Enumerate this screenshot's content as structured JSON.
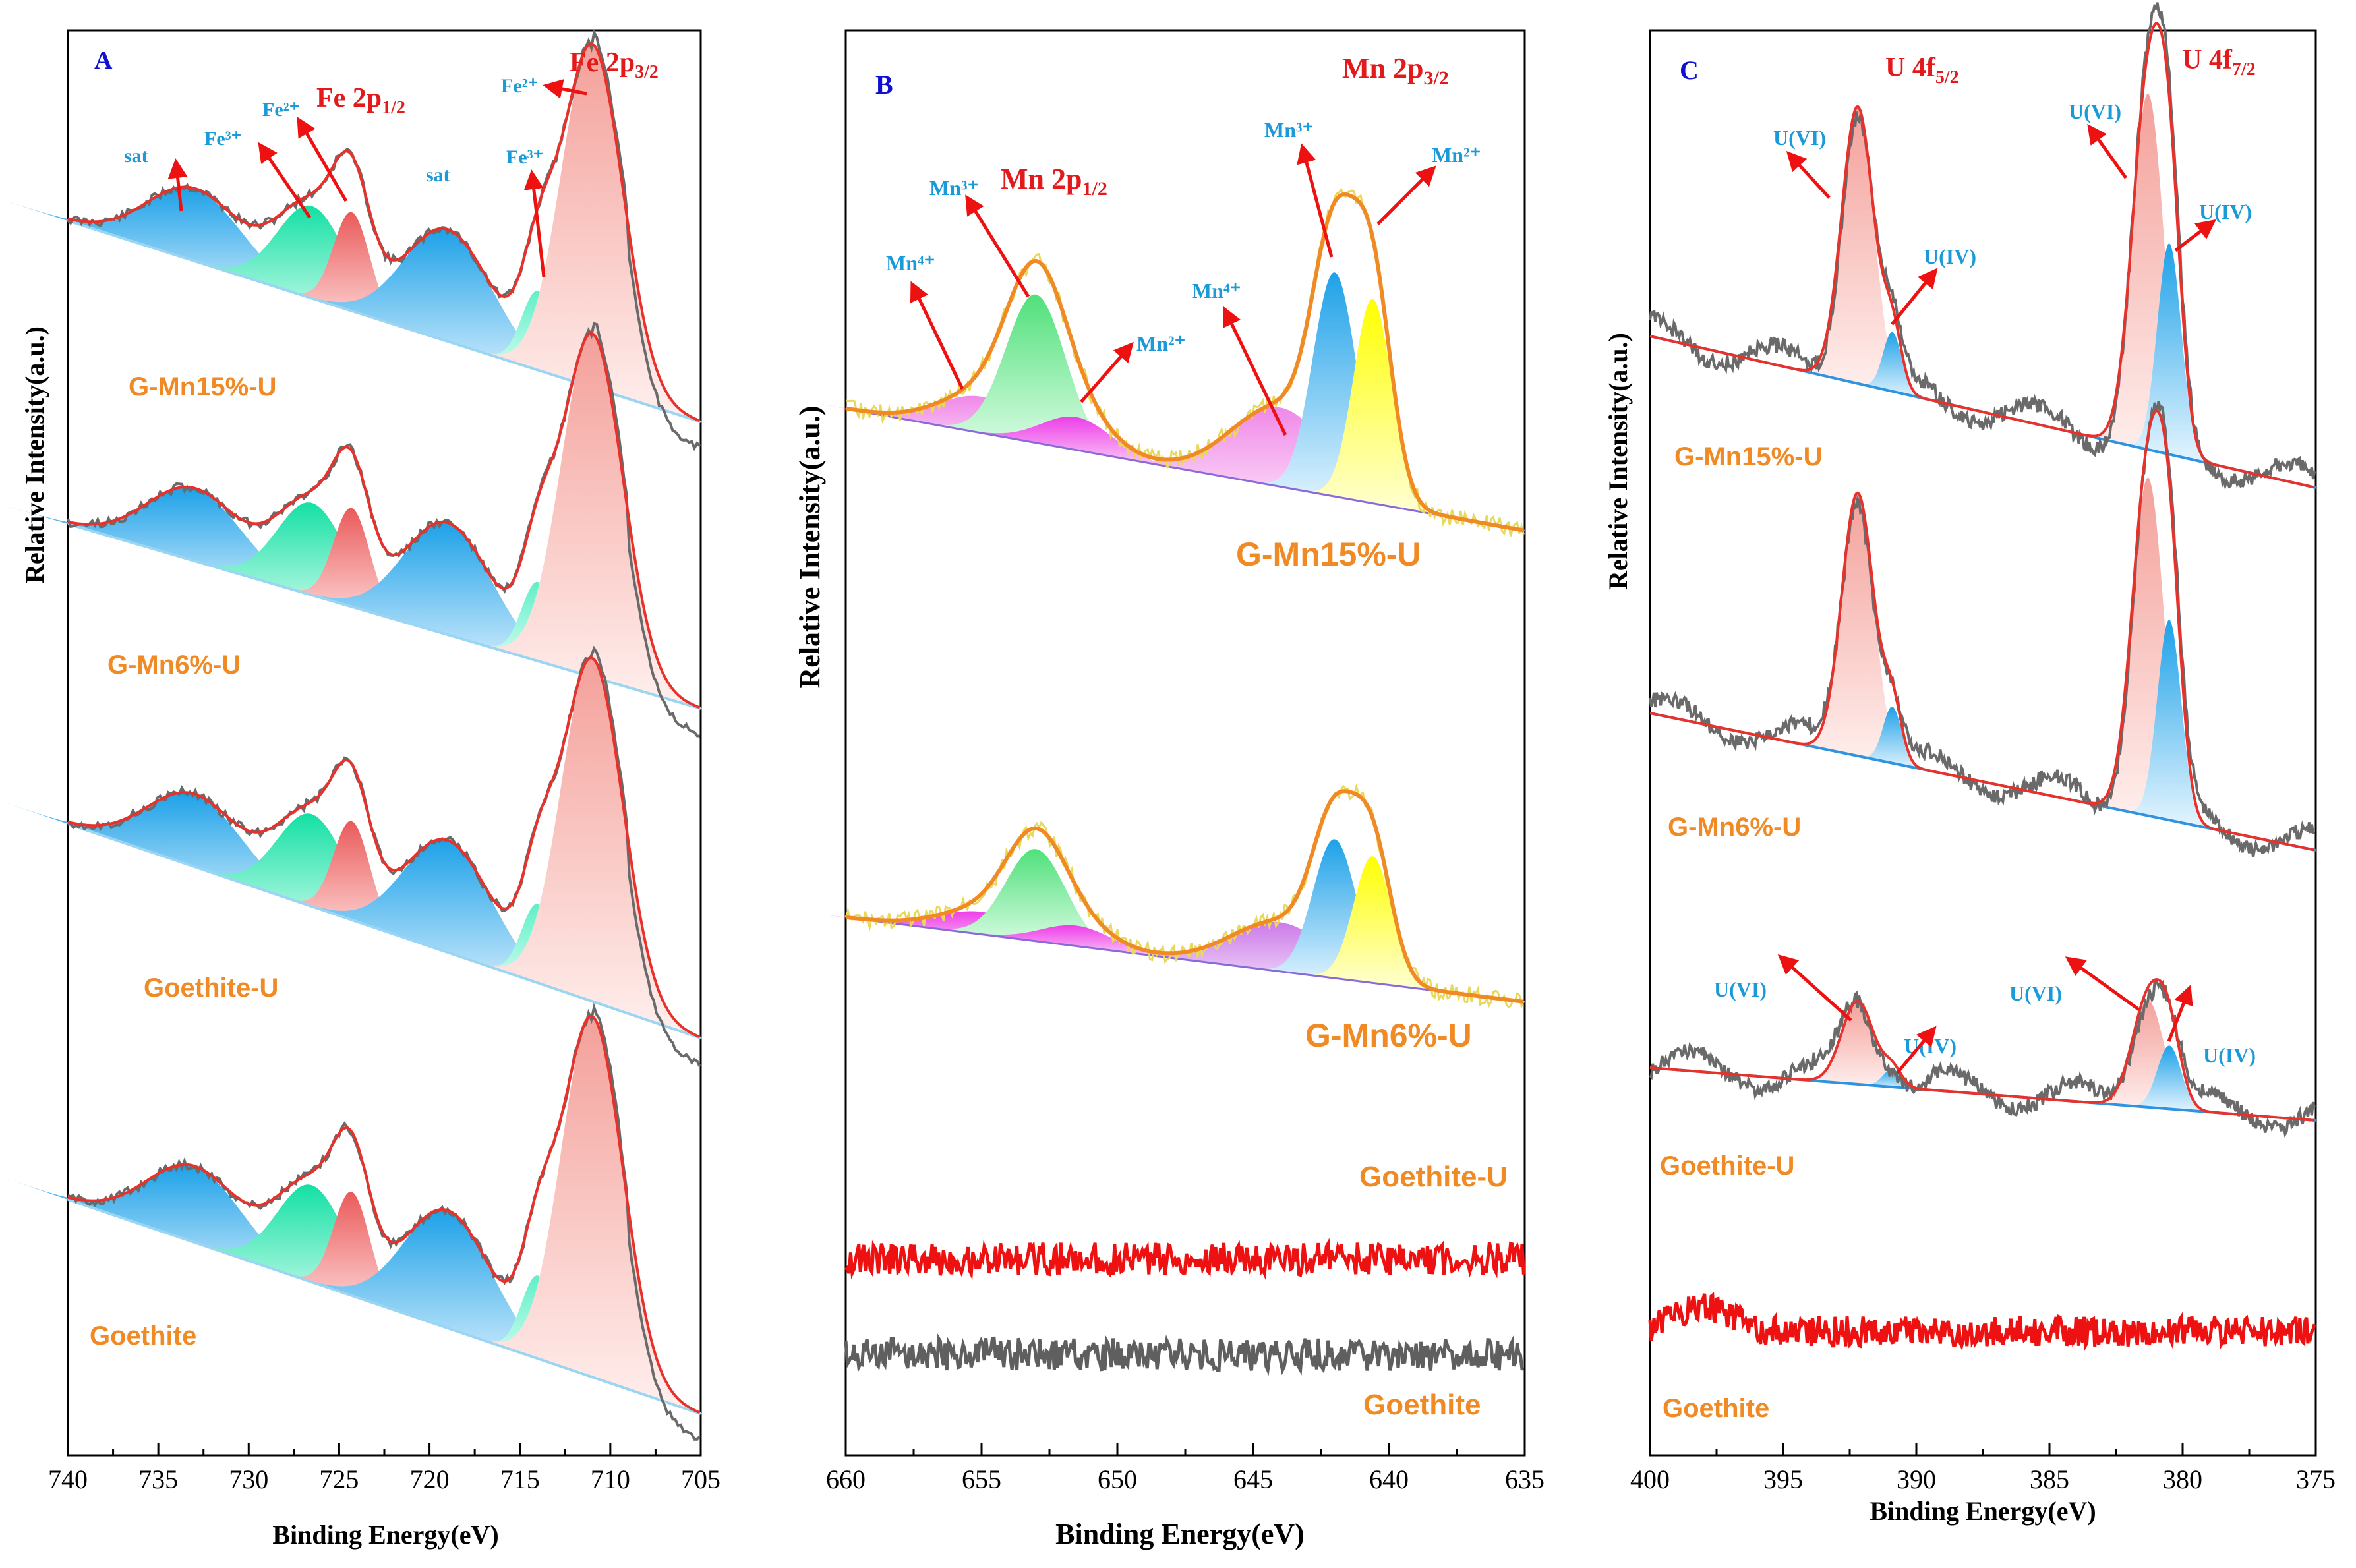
{
  "chart_data": [
    {
      "id": "A",
      "type": "line",
      "title": "A",
      "xlabel": "Binding Energy(eV)",
      "ylabel": "Relative Intensity(a.u.)",
      "xlim": [
        740,
        705
      ],
      "xticks": [
        740,
        735,
        730,
        725,
        720,
        715,
        710,
        705
      ],
      "samples": [
        "G-Mn15%-U",
        "G-Mn6%-U",
        "Goethite-U",
        "Goethite"
      ],
      "peak_labels": {
        "sat_1": "sat",
        "fe3_1": "Fe³⁺",
        "fe2_1": "Fe²⁺",
        "fe2p12_main": "Fe 2p",
        "fe2p12_sub": "1/2",
        "sat_2": "sat",
        "fe3_2": "Fe³⁺",
        "fe2_2": "Fe²⁺",
        "fe2p32_main": "Fe 2p",
        "fe2p32_sub": "3/2"
      },
      "components_eV": {
        "sat_high": 733,
        "fe3_12": 726.5,
        "fe2_12": 724.3,
        "sat_low": 719,
        "fe3_32": 714,
        "fe2_32": 711
      }
    },
    {
      "id": "B",
      "type": "line",
      "title": "B",
      "xlabel": "Binding Energy(eV)",
      "ylabel": "Relative Intensity(a.u.)",
      "xlim": [
        660,
        635
      ],
      "xticks": [
        660,
        655,
        650,
        645,
        640,
        635
      ],
      "samples": [
        "G-Mn15%-U",
        "G-Mn6%-U",
        "Goethite-U",
        "Goethite"
      ],
      "peak_labels": {
        "mn4_1": "Mn⁴⁺",
        "mn3_1": "Mn³⁺",
        "mn2p12_main": "Mn 2p",
        "mn2p12_sub": "1/2",
        "mn2_1": "Mn²⁺",
        "mn4_2": "Mn⁴⁺",
        "mn3_2": "Mn³⁺",
        "mn2p32_main": "Mn 2p",
        "mn2p32_sub": "3/2",
        "mn2_2": "Mn²⁺"
      },
      "components_eV": {
        "mn4_12": 655,
        "mn3_12": 653,
        "mn2_12": 651.5,
        "mn4_32": 644,
        "mn3_32": 642,
        "mn2_32": 640.6
      }
    },
    {
      "id": "C",
      "type": "line",
      "title": "C",
      "xlabel": "Binding Energy(eV)",
      "ylabel": "Relative Intensity(a.u.)",
      "xlim": [
        400,
        375
      ],
      "xticks": [
        400,
        395,
        390,
        385,
        380,
        375
      ],
      "samples": [
        "G-Mn15%-U",
        "G-Mn6%-U",
        "Goethite-U",
        "Goethite"
      ],
      "peak_labels": {
        "u6_1": "U(VI)",
        "u4f52_main": "U 4f",
        "u4f52_sub": "5/2",
        "u4_1": "U(IV)",
        "u6_2": "U(VI)",
        "u4f72_main": "U 4f",
        "u4f72_sub": "7/2",
        "u4_2": "U(IV)",
        "u6_3": "U(VI)",
        "u4_3": "U(IV)",
        "u6_4": "U(VI)",
        "u4_4": "U(IV)"
      },
      "components_eV": {
        "u6_52": 392.2,
        "u4_52": 390.9,
        "u6_72": 381.3,
        "u4_72": 380.5
      }
    }
  ],
  "colors": {
    "raw": "#6a6a6a",
    "envelope_A_C": "#e8312b",
    "envelope_B": "#f08a24",
    "raw_B": "#e8d85c",
    "sample_label": "#f08a24",
    "ion_label": "#1a9ad8",
    "peak_title": "#e31a1c",
    "arrow": "#ee1111",
    "panel_letter": "#1010d0",
    "fill_blue": "#1da1e8",
    "fill_pink": "#f4a09a",
    "fill_red": "#ea5a5a",
    "fill_green": "#14e0a4",
    "fill_mint": "#5ef0c8",
    "fill_magenta": "#ee3ee8",
    "fill_lgreen": "#50e07a",
    "fill_yellow": "#ffff00",
    "fill_violet": "#cc7ae8",
    "fill_lpink": "#f088e8",
    "bg_red": "#ee1111",
    "bg_gray": "#5f5f5f"
  }
}
